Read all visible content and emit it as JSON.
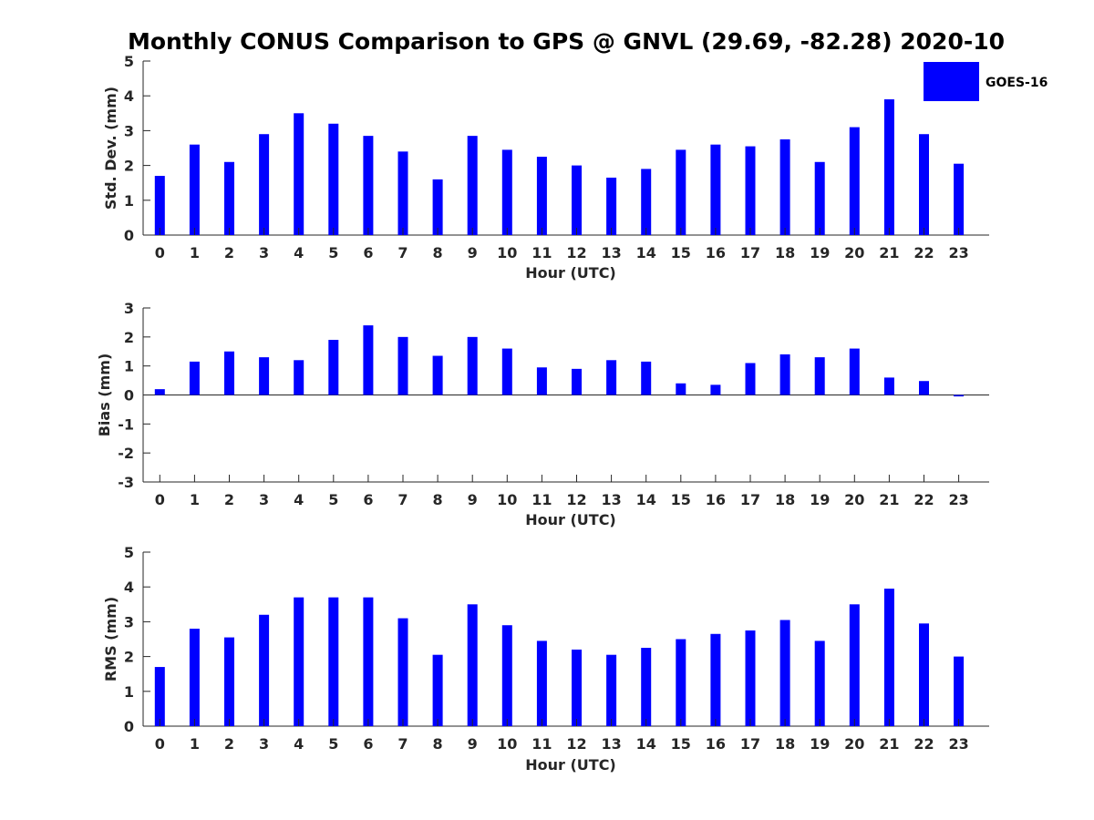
{
  "title": "Monthly CONUS Comparison to GPS @ GNVL (29.69, -82.28) 2020-10",
  "legend": {
    "label": "GOES-16",
    "color": "#0000ff"
  },
  "chart_data": [
    {
      "type": "bar",
      "series": [
        {
          "name": "GOES-16",
          "values": [
            1.7,
            2.6,
            2.1,
            2.9,
            3.5,
            3.2,
            2.85,
            2.4,
            1.6,
            2.85,
            2.45,
            2.25,
            2.0,
            1.65,
            1.9,
            2.45,
            2.6,
            2.55,
            2.75,
            2.1,
            3.1,
            3.9,
            2.9,
            2.05
          ]
        }
      ],
      "categories": [
        "0",
        "1",
        "2",
        "3",
        "4",
        "5",
        "6",
        "7",
        "8",
        "9",
        "10",
        "11",
        "12",
        "13",
        "14",
        "15",
        "16",
        "17",
        "18",
        "19",
        "20",
        "21",
        "22",
        "23"
      ],
      "xlabel": "Hour (UTC)",
      "ylabel": "Std. Dev. (mm)",
      "ylim": [
        0,
        5
      ],
      "yticks": [
        "0",
        "1",
        "2",
        "3",
        "4",
        "5"
      ],
      "grid": false,
      "legend_position": "top-right"
    },
    {
      "type": "bar",
      "series": [
        {
          "name": "GOES-16",
          "values": [
            0.2,
            1.15,
            1.5,
            1.3,
            1.2,
            1.9,
            2.4,
            2.0,
            1.35,
            2.0,
            1.6,
            0.95,
            0.9,
            1.2,
            1.15,
            0.4,
            0.35,
            1.1,
            1.4,
            1.3,
            1.6,
            0.6,
            0.48,
            -0.05
          ]
        }
      ],
      "categories": [
        "0",
        "1",
        "2",
        "3",
        "4",
        "5",
        "6",
        "7",
        "8",
        "9",
        "10",
        "11",
        "12",
        "13",
        "14",
        "15",
        "16",
        "17",
        "18",
        "19",
        "20",
        "21",
        "22",
        "23"
      ],
      "xlabel": "Hour (UTC)",
      "ylabel": "Bias (mm)",
      "ylim": [
        -3,
        3
      ],
      "yticks": [
        "-3",
        "-2",
        "-1",
        "0",
        "1",
        "2",
        "3"
      ],
      "grid": false
    },
    {
      "type": "bar",
      "series": [
        {
          "name": "GOES-16",
          "values": [
            1.7,
            2.8,
            2.55,
            3.2,
            3.7,
            3.7,
            3.7,
            3.1,
            2.05,
            3.5,
            2.9,
            2.45,
            2.2,
            2.05,
            2.25,
            2.5,
            2.65,
            2.75,
            3.05,
            2.45,
            3.5,
            3.95,
            2.95,
            2.0
          ]
        }
      ],
      "categories": [
        "0",
        "1",
        "2",
        "3",
        "4",
        "5",
        "6",
        "7",
        "8",
        "9",
        "10",
        "11",
        "12",
        "13",
        "14",
        "15",
        "16",
        "17",
        "18",
        "19",
        "20",
        "21",
        "22",
        "23"
      ],
      "xlabel": "Hour (UTC)",
      "ylabel": "RMS (mm)",
      "ylim": [
        0,
        5
      ],
      "yticks": [
        "0",
        "1",
        "2",
        "3",
        "4",
        "5"
      ],
      "grid": false
    }
  ]
}
